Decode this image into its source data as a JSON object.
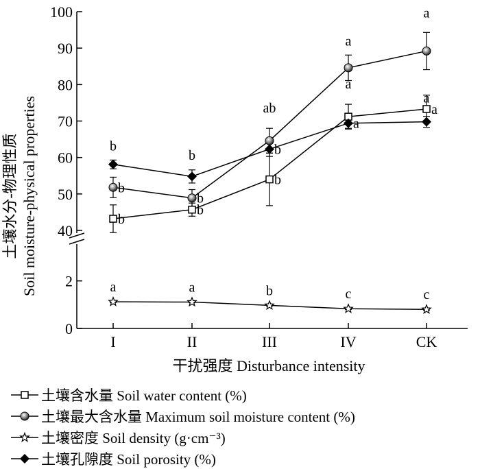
{
  "chart_data": {
    "type": "line",
    "xlabel": "干扰强度 Disturbance intensity",
    "ylabel_cn": "土壤水分-物理性质",
    "ylabel_en": "Soil moisture-physical properties",
    "categories": [
      "I",
      "II",
      "III",
      "IV",
      "CK"
    ],
    "y_axis_break": true,
    "lower_segment": {
      "ylim": [
        0,
        3
      ],
      "ticks": [
        0,
        2
      ]
    },
    "upper_segment": {
      "ylim": [
        37,
        100
      ],
      "ticks": [
        40,
        50,
        60,
        70,
        80,
        90,
        100
      ]
    },
    "series": [
      {
        "name": "土壤含水量 Soil water content (%)",
        "marker": "open-square",
        "values": [
          43.2,
          45.7,
          54.0,
          71.2,
          73.3
        ],
        "error": [
          3.8,
          1.8,
          7.2,
          3.4,
          3.8
        ],
        "letters": [
          "b",
          "b",
          "b",
          "a",
          "a"
        ]
      },
      {
        "name": "土壤最大含水量 Maximum soil moisture content (%)",
        "marker": "shaded-circle",
        "values": [
          51.8,
          48.9,
          64.6,
          84.6,
          89.2
        ],
        "error": [
          2.8,
          2.3,
          3.4,
          3.5,
          5.1
        ],
        "letters": [
          "b",
          "b",
          "ab",
          "a",
          "a"
        ]
      },
      {
        "name": "土壤密度 Soil density (g·cm⁻³)",
        "marker": "open-star",
        "values": [
          1.12,
          1.11,
          0.97,
          0.83,
          0.8
        ],
        "error": [
          0.03,
          0.03,
          0.03,
          0.03,
          0.03
        ],
        "letters": [
          "a",
          "a",
          "b",
          "c",
          "c"
        ]
      },
      {
        "name": "土壤孔隙度 Soil porosity (%)",
        "marker": "filled-diamond",
        "values": [
          58.1,
          54.8,
          62.3,
          69.4,
          69.8
        ],
        "error": [
          1.2,
          1.8,
          2.0,
          1.4,
          1.5
        ],
        "letters": [
          "b",
          "b",
          "b",
          "a",
          "a"
        ]
      }
    ],
    "legend_position": "bottom",
    "grid": false
  }
}
